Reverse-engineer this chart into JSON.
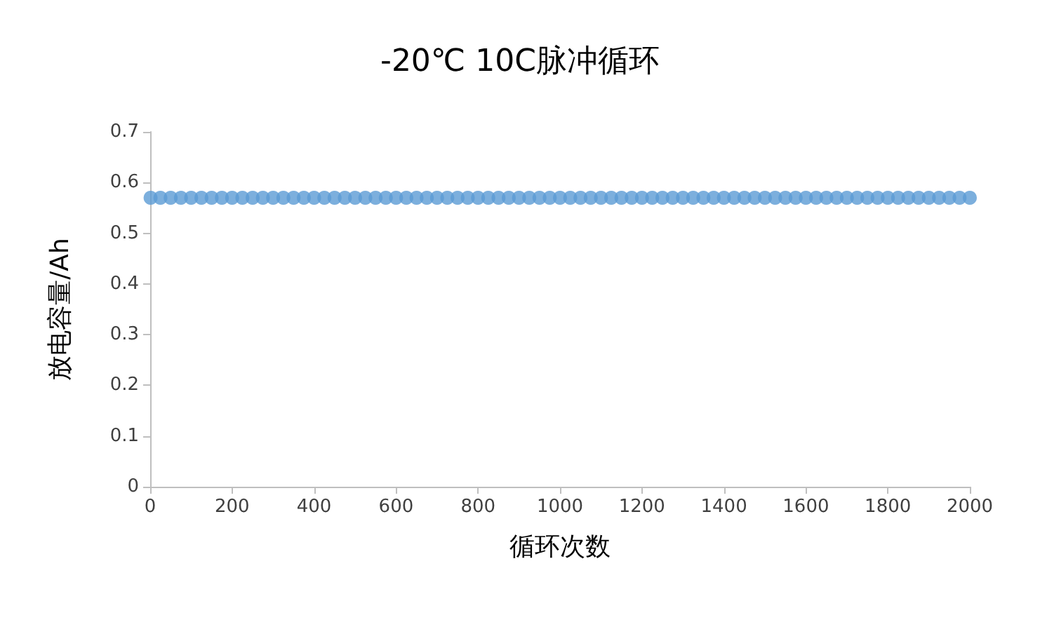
{
  "chart_data": {
    "type": "scatter",
    "title": "-20℃ 10C脉冲循环",
    "xlabel": "循环次数",
    "ylabel": "放电容量/Ah",
    "x": [
      1,
      25,
      50,
      75,
      100,
      125,
      150,
      175,
      200,
      225,
      250,
      275,
      300,
      325,
      350,
      375,
      400,
      425,
      450,
      475,
      500,
      525,
      550,
      575,
      600,
      625,
      650,
      675,
      700,
      725,
      750,
      775,
      800,
      825,
      850,
      875,
      900,
      925,
      950,
      975,
      1000,
      1025,
      1050,
      1075,
      1100,
      1125,
      1150,
      1175,
      1200,
      1225,
      1250,
      1275,
      1300,
      1325,
      1350,
      1375,
      1400,
      1425,
      1450,
      1475,
      1500,
      1525,
      1550,
      1575,
      1600,
      1625,
      1650,
      1675,
      1700,
      1725,
      1750,
      1775,
      1800,
      1825,
      1850,
      1875,
      1900,
      1925,
      1950,
      1975,
      2000
    ],
    "values": [
      0.57,
      0.57,
      0.57,
      0.57,
      0.57,
      0.57,
      0.57,
      0.57,
      0.57,
      0.57,
      0.57,
      0.57,
      0.57,
      0.57,
      0.57,
      0.57,
      0.57,
      0.57,
      0.57,
      0.57,
      0.57,
      0.57,
      0.57,
      0.57,
      0.57,
      0.57,
      0.57,
      0.57,
      0.57,
      0.57,
      0.57,
      0.57,
      0.57,
      0.57,
      0.57,
      0.57,
      0.57,
      0.57,
      0.57,
      0.57,
      0.57,
      0.57,
      0.57,
      0.57,
      0.57,
      0.57,
      0.57,
      0.57,
      0.57,
      0.57,
      0.57,
      0.57,
      0.57,
      0.57,
      0.57,
      0.57,
      0.57,
      0.57,
      0.57,
      0.57,
      0.57,
      0.57,
      0.57,
      0.57,
      0.57,
      0.57,
      0.57,
      0.57,
      0.57,
      0.57,
      0.57,
      0.57,
      0.57,
      0.57,
      0.57,
      0.57,
      0.57,
      0.57,
      0.57,
      0.57,
      0.57
    ],
    "color": "#5b9bd5",
    "marker": "circle",
    "grid": false,
    "xlim": [
      0,
      2000
    ],
    "xticks": [
      0,
      200,
      400,
      600,
      800,
      1000,
      1200,
      1400,
      1600,
      1800,
      2000
    ],
    "ylim": [
      0,
      0.7
    ],
    "yticks": [
      0,
      0.1,
      0.2,
      0.3,
      0.4,
      0.5,
      0.6,
      0.7
    ]
  }
}
